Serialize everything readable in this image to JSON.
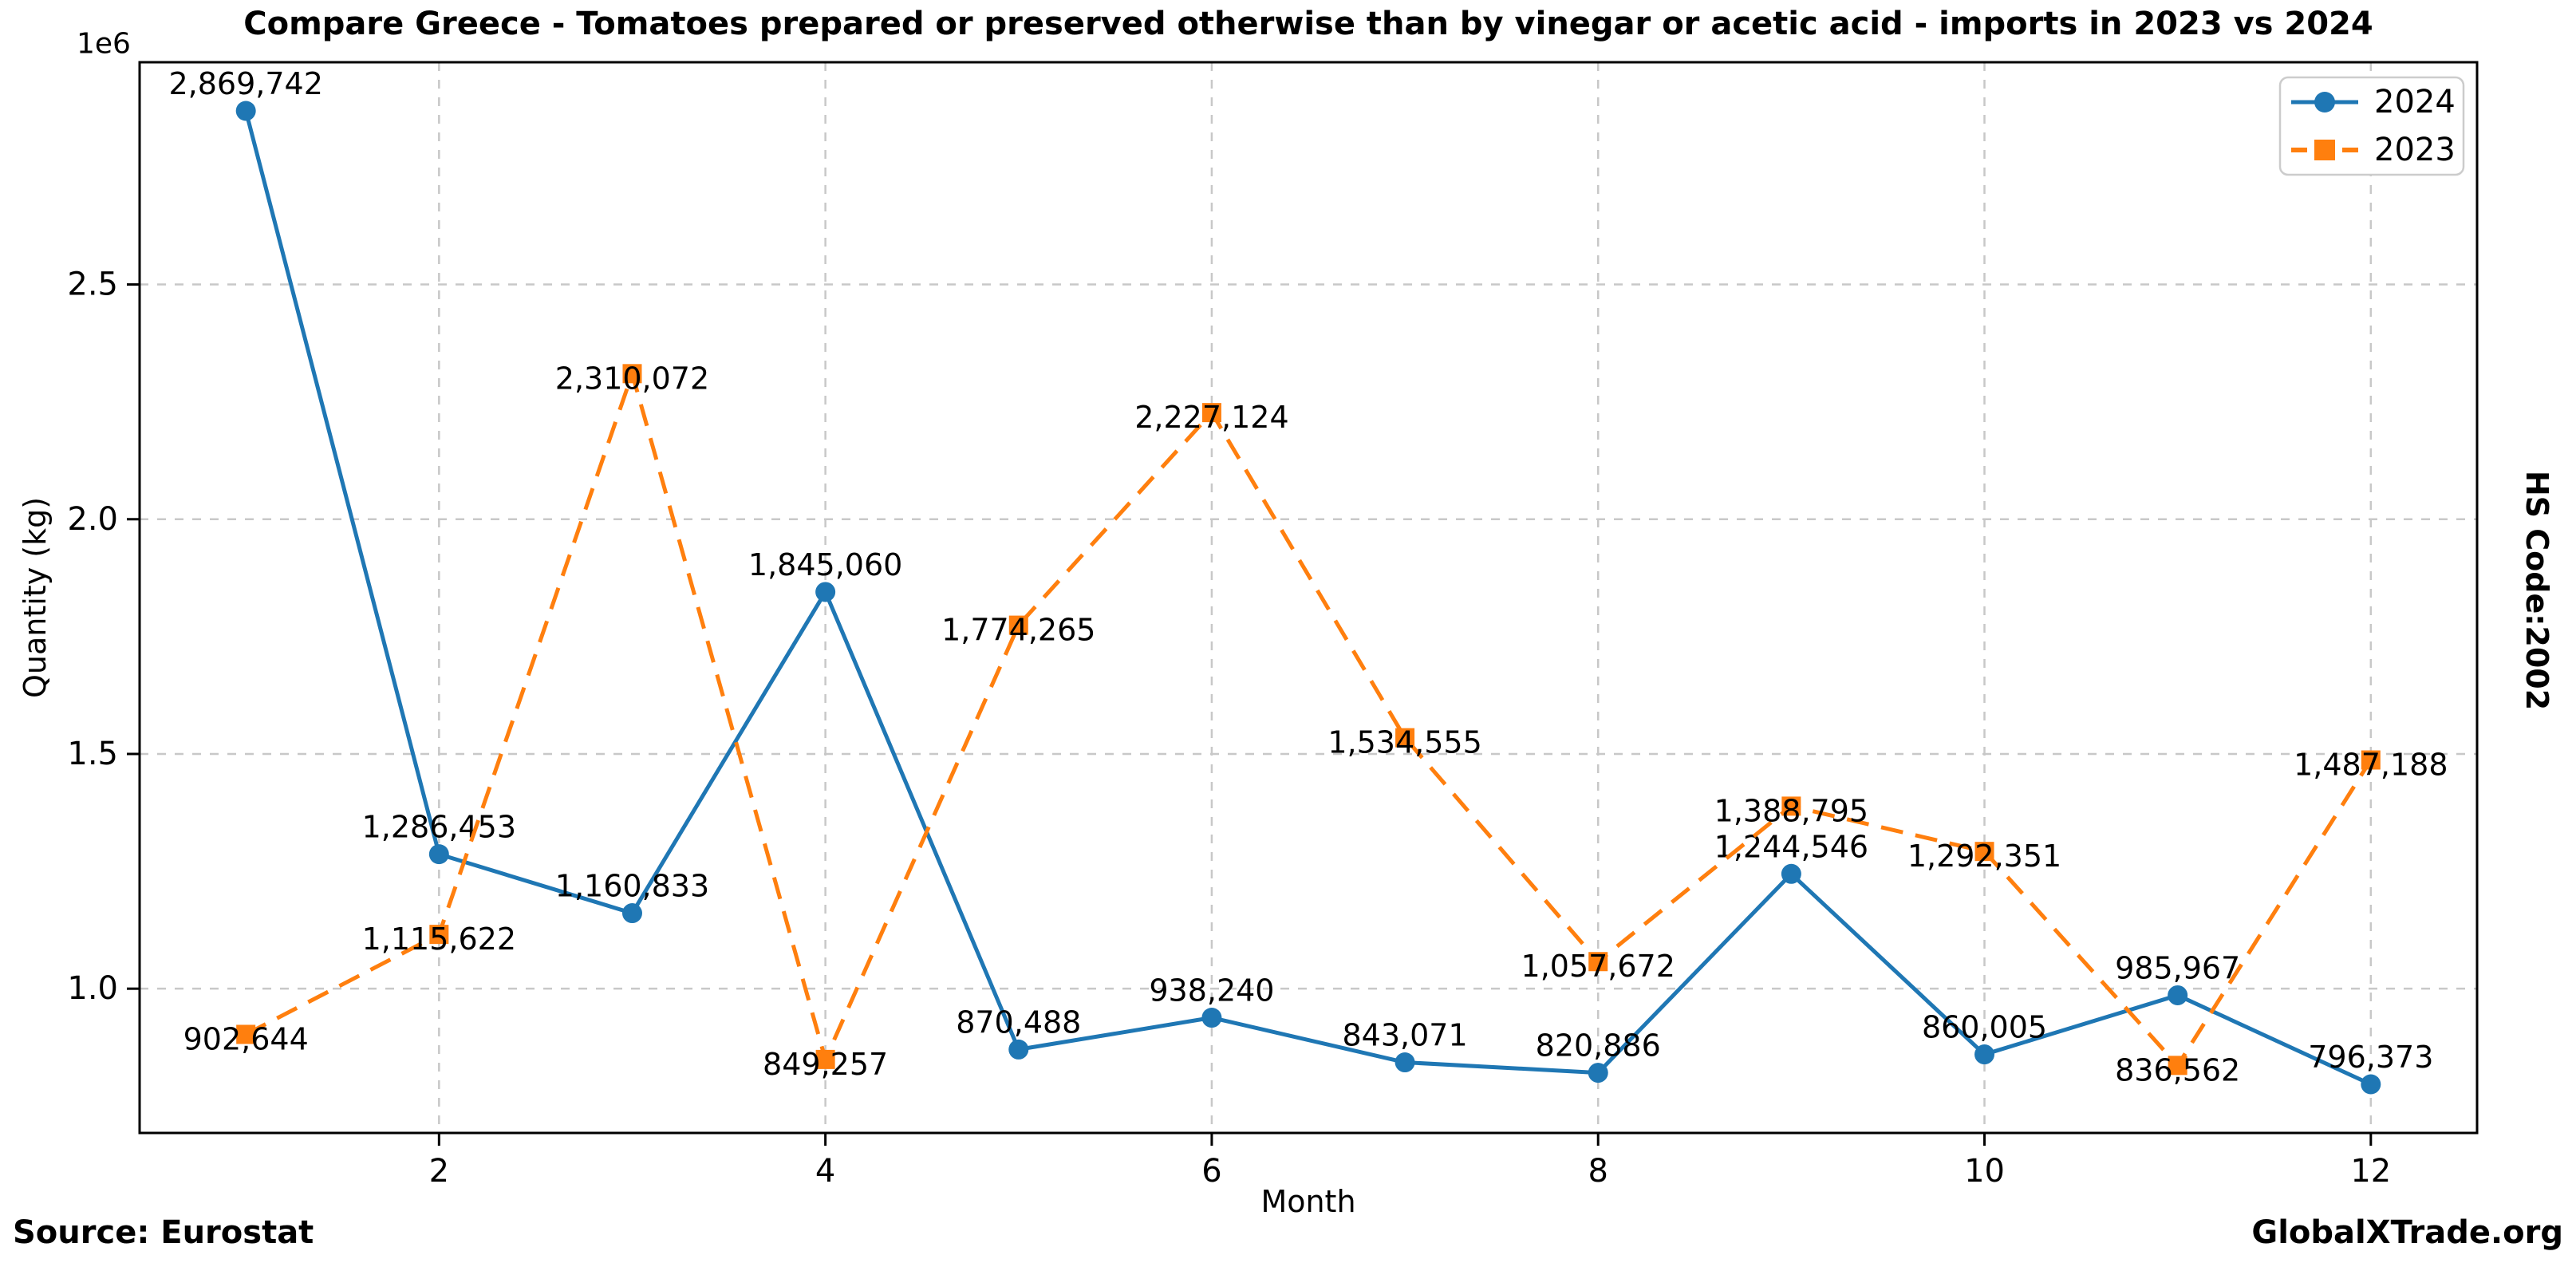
{
  "title": "Compare Greece - Tomatoes prepared or preserved otherwise than by vinegar or acetic acid - imports in 2023 vs 2024",
  "y_axis": {
    "label": "Quantity (kg)",
    "offset_text": "1e6",
    "tick_labels": [
      "1.0",
      "1.5",
      "2.0",
      "2.5"
    ]
  },
  "x_axis": {
    "label": "Month",
    "tick_labels": [
      "2",
      "4",
      "6",
      "8",
      "10",
      "12"
    ]
  },
  "right_side_label": "HS Code:2002",
  "footer": {
    "source": "Source: Eurostat",
    "brand": "GlobalXTrade.org"
  },
  "legend": {
    "position": "upper right",
    "items": [
      {
        "label": "2024",
        "color": "#1f77b4",
        "marker": "circle",
        "line": "solid"
      },
      {
        "label": "2023",
        "color": "#ff7f0e",
        "marker": "square",
        "line": "dashed"
      }
    ]
  },
  "chart_data": {
    "type": "line",
    "x": [
      1,
      2,
      3,
      4,
      5,
      6,
      7,
      8,
      9,
      10,
      11,
      12
    ],
    "xlabel": "Month",
    "ylabel": "Quantity (kg)",
    "xlim": [
      0.45,
      12.55
    ],
    "ylim": [
      692705,
      2973411
    ],
    "xticks": [
      2,
      4,
      6,
      8,
      10,
      12
    ],
    "yticks_e6": [
      1.0,
      1.5,
      2.0,
      2.5
    ],
    "grid": {
      "show": true,
      "color": "#c8c8c8",
      "dash": "11 11"
    },
    "spine_color": "#000000",
    "series": [
      {
        "name": "2024",
        "color": "#1f77b4",
        "style": "solid",
        "marker": "circle",
        "label_position": "above",
        "values": [
          2869742,
          1286453,
          1160833,
          1845060,
          870488,
          938240,
          843071,
          820886,
          1244546,
          860005,
          985967,
          796373
        ]
      },
      {
        "name": "2023",
        "color": "#ff7f0e",
        "style": "dashed",
        "marker": "square",
        "label_position": "center",
        "values": [
          902644,
          1115622,
          2310072,
          849257,
          1774265,
          2227124,
          1534555,
          1057672,
          1388795,
          1292351,
          836562,
          1487188
        ]
      }
    ]
  }
}
